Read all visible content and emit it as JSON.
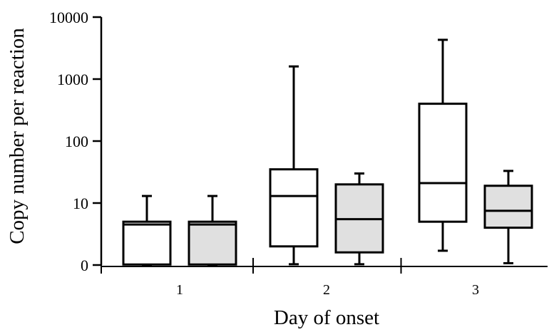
{
  "chart_data": {
    "type": "box",
    "xlabel": "Day of onset",
    "ylabel": "Copy number per reaction",
    "y_scale": "log",
    "ylim": [
      1,
      10000
    ],
    "y_ticks": [
      {
        "value": 1,
        "label": "0"
      },
      {
        "value": 10,
        "label": "10"
      },
      {
        "value": 100,
        "label": "100"
      },
      {
        "value": 1000,
        "label": "1000"
      },
      {
        "value": 10000,
        "label": "10000"
      }
    ],
    "categories": [
      "1",
      "2",
      "3"
    ],
    "series": [
      {
        "fill": "#ffffff",
        "boxes": [
          {
            "category": "1",
            "min": 1,
            "q1": 1.02,
            "median": 4.5,
            "q3": 5,
            "max": 13
          },
          {
            "category": "2",
            "min": 1.03,
            "q1": 2,
            "median": 13,
            "q3": 35,
            "max": 1600
          },
          {
            "category": "3",
            "min": 1.7,
            "q1": 5,
            "median": 21,
            "q3": 400,
            "max": 4300
          }
        ]
      },
      {
        "fill": "#e0e0e0",
        "boxes": [
          {
            "category": "1",
            "min": 1,
            "q1": 1.02,
            "median": 4.5,
            "q3": 5,
            "max": 13
          },
          {
            "category": "2",
            "min": 1.03,
            "q1": 1.6,
            "median": 5.5,
            "q3": 20,
            "max": 30
          },
          {
            "category": "3",
            "min": 1.07,
            "q1": 4,
            "median": 7.5,
            "q3": 19,
            "max": 33
          }
        ]
      }
    ]
  }
}
